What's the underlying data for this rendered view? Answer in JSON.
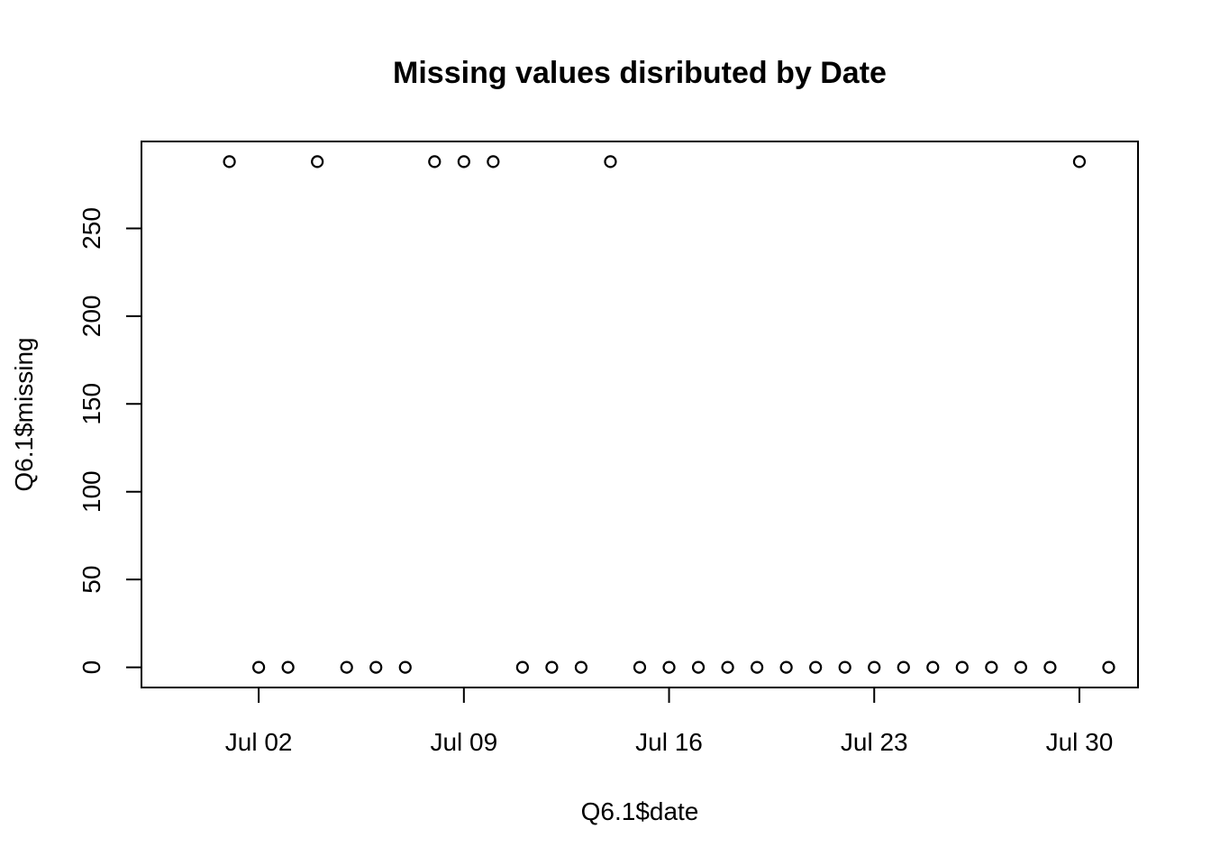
{
  "chart_data": {
    "type": "scatter",
    "title": "Missing values disributed by Date",
    "xlabel": "Q6.1$date",
    "ylabel": "Q6.1$missing",
    "x_axis": {
      "type": "date",
      "ticks": [
        "2012-07-02",
        "2012-07-09",
        "2012-07-16",
        "2012-07-23",
        "2012-07-30"
      ],
      "tick_labels": [
        "Jul 02",
        "Jul 09",
        "Jul 16",
        "Jul 23",
        "Jul 30"
      ],
      "range": [
        "2012-06-28",
        "2012-08-01"
      ]
    },
    "y_axis": {
      "ticks": [
        0,
        50,
        100,
        150,
        200,
        250
      ],
      "tick_labels": [
        "0",
        "50",
        "100",
        "150",
        "200",
        "250"
      ],
      "range": [
        -11.5,
        299.5
      ]
    },
    "grid": false,
    "points": [
      {
        "x": "2012-07-01",
        "y": 288
      },
      {
        "x": "2012-07-02",
        "y": 0
      },
      {
        "x": "2012-07-03",
        "y": 0
      },
      {
        "x": "2012-07-04",
        "y": 288
      },
      {
        "x": "2012-07-05",
        "y": 0
      },
      {
        "x": "2012-07-06",
        "y": 0
      },
      {
        "x": "2012-07-07",
        "y": 0
      },
      {
        "x": "2012-07-08",
        "y": 288
      },
      {
        "x": "2012-07-09",
        "y": 288
      },
      {
        "x": "2012-07-10",
        "y": 288
      },
      {
        "x": "2012-07-11",
        "y": 0
      },
      {
        "x": "2012-07-12",
        "y": 0
      },
      {
        "x": "2012-07-13",
        "y": 0
      },
      {
        "x": "2012-07-14",
        "y": 288
      },
      {
        "x": "2012-07-15",
        "y": 0
      },
      {
        "x": "2012-07-16",
        "y": 0
      },
      {
        "x": "2012-07-17",
        "y": 0
      },
      {
        "x": "2012-07-18",
        "y": 0
      },
      {
        "x": "2012-07-19",
        "y": 0
      },
      {
        "x": "2012-07-20",
        "y": 0
      },
      {
        "x": "2012-07-21",
        "y": 0
      },
      {
        "x": "2012-07-22",
        "y": 0
      },
      {
        "x": "2012-07-23",
        "y": 0
      },
      {
        "x": "2012-07-24",
        "y": 0
      },
      {
        "x": "2012-07-25",
        "y": 0
      },
      {
        "x": "2012-07-26",
        "y": 0
      },
      {
        "x": "2012-07-27",
        "y": 0
      },
      {
        "x": "2012-07-28",
        "y": 0
      },
      {
        "x": "2012-07-29",
        "y": 0
      },
      {
        "x": "2012-07-30",
        "y": 288
      },
      {
        "x": "2012-07-31",
        "y": 0
      }
    ]
  }
}
